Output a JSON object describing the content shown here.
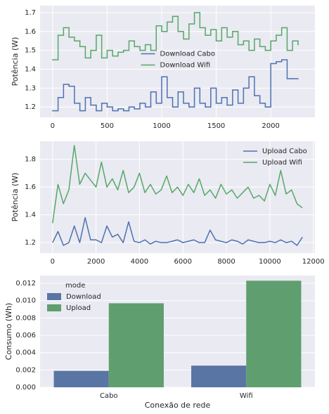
{
  "chart_data": [
    {
      "type": "line",
      "step": "post",
      "ylabel": "Potência (W)",
      "legend": "center",
      "xlim": [
        -115,
        2405
      ],
      "xticks": [
        0,
        500,
        1000,
        1500,
        2000
      ],
      "ylim": [
        1.145,
        1.737
      ],
      "yticks": [
        1.2,
        1.3,
        1.4,
        1.5,
        1.6,
        1.7
      ],
      "grid": true,
      "x": [
        0,
        50,
        100,
        150,
        200,
        250,
        300,
        350,
        400,
        450,
        500,
        550,
        600,
        650,
        700,
        750,
        800,
        850,
        900,
        950,
        1000,
        1050,
        1100,
        1150,
        1200,
        1250,
        1300,
        1350,
        1400,
        1450,
        1500,
        1550,
        1600,
        1650,
        1700,
        1750,
        1800,
        1850,
        1900,
        1950,
        2000,
        2050,
        2100,
        2150,
        2200,
        2250
      ],
      "series": [
        {
          "name": "Download Cabo",
          "color": "#4c72b0",
          "values": [
            1.18,
            1.25,
            1.32,
            1.31,
            1.22,
            1.18,
            1.25,
            1.21,
            1.18,
            1.22,
            1.2,
            1.18,
            1.19,
            1.18,
            1.2,
            1.19,
            1.22,
            1.2,
            1.28,
            1.22,
            1.36,
            1.25,
            1.2,
            1.28,
            1.22,
            1.2,
            1.3,
            1.22,
            1.2,
            1.3,
            1.22,
            1.25,
            1.21,
            1.29,
            1.22,
            1.3,
            1.36,
            1.26,
            1.22,
            1.2,
            1.43,
            1.44,
            1.45,
            1.35,
            1.35,
            null
          ]
        },
        {
          "name": "Download Wifi",
          "color": "#55a868",
          "values": [
            1.45,
            1.58,
            1.62,
            1.57,
            1.55,
            1.52,
            1.46,
            1.5,
            1.58,
            1.46,
            1.5,
            1.47,
            1.49,
            1.5,
            1.55,
            1.52,
            1.5,
            1.53,
            1.5,
            1.63,
            1.6,
            1.65,
            1.68,
            1.6,
            1.56,
            1.64,
            1.7,
            1.62,
            1.58,
            1.61,
            1.55,
            1.62,
            1.57,
            1.6,
            1.53,
            1.55,
            1.5,
            1.56,
            1.52,
            1.5,
            1.55,
            1.58,
            1.62,
            1.5,
            1.55,
            1.53
          ]
        }
      ]
    },
    {
      "type": "line",
      "ylabel": "Potência (W)",
      "legend": "upper right",
      "xlim": [
        -575,
        12075
      ],
      "xticks": [
        0,
        2000,
        4000,
        6000,
        8000,
        10000,
        12000
      ],
      "ylim": [
        1.125,
        1.93
      ],
      "yticks": [
        1.2,
        1.4,
        1.6,
        1.8
      ],
      "grid": true,
      "x": [
        0,
        250,
        500,
        750,
        1000,
        1250,
        1500,
        1750,
        2000,
        2250,
        2500,
        2750,
        3000,
        3250,
        3500,
        3750,
        4000,
        4250,
        4500,
        4750,
        5000,
        5250,
        5500,
        5750,
        6000,
        6250,
        6500,
        6750,
        7000,
        7250,
        7500,
        7750,
        8000,
        8250,
        8500,
        8750,
        9000,
        9250,
        9500,
        9750,
        10000,
        10250,
        10500,
        10750,
        11000,
        11250,
        11500
      ],
      "series": [
        {
          "name": "Upload Cabo",
          "color": "#4c72b0",
          "values": [
            1.2,
            1.28,
            1.18,
            1.2,
            1.32,
            1.2,
            1.38,
            1.22,
            1.22,
            1.2,
            1.32,
            1.24,
            1.26,
            1.2,
            1.35,
            1.21,
            1.2,
            1.22,
            1.19,
            1.21,
            1.2,
            1.2,
            1.21,
            1.22,
            1.2,
            1.21,
            1.22,
            1.2,
            1.2,
            1.29,
            1.22,
            1.21,
            1.2,
            1.22,
            1.21,
            1.19,
            1.22,
            1.21,
            1.2,
            1.2,
            1.21,
            1.2,
            1.22,
            1.2,
            1.21,
            1.18,
            1.24
          ]
        },
        {
          "name": "Upload Wifi",
          "color": "#55a868",
          "values": [
            1.34,
            1.62,
            1.48,
            1.58,
            1.9,
            1.62,
            1.7,
            1.65,
            1.6,
            1.78,
            1.6,
            1.66,
            1.58,
            1.72,
            1.56,
            1.6,
            1.7,
            1.56,
            1.62,
            1.55,
            1.58,
            1.68,
            1.56,
            1.6,
            1.54,
            1.62,
            1.56,
            1.66,
            1.54,
            1.58,
            1.52,
            1.62,
            1.55,
            1.58,
            1.52,
            1.56,
            1.6,
            1.52,
            1.54,
            1.5,
            1.62,
            1.54,
            1.72,
            1.55,
            1.58,
            1.48,
            1.45
          ]
        }
      ]
    },
    {
      "type": "bar",
      "xlabel": "Conexão de rede",
      "ylabel": "Consumo (Wh)",
      "legend": "upper left",
      "legend_title": "mode",
      "categories": [
        "Cabo",
        "Wifi"
      ],
      "ylim": [
        0,
        0.0129
      ],
      "grid": true,
      "yticks": [
        {
          "value": 0,
          "label": "0.000"
        },
        {
          "value": 0.002,
          "label": "0.002"
        },
        {
          "value": 0.004,
          "label": "0.004"
        },
        {
          "value": 0.006,
          "label": "0.006"
        },
        {
          "value": 0.008,
          "label": "0.008"
        },
        {
          "value": 0.01,
          "label": "0.010"
        },
        {
          "value": 0.012,
          "label": "0.012"
        }
      ],
      "series": [
        {
          "name": "Download",
          "color": "#5975a4",
          "values": [
            0.0019,
            0.0025
          ]
        },
        {
          "name": "Upload",
          "color": "#5f9e6e",
          "values": [
            0.0097,
            0.0123
          ]
        }
      ]
    }
  ]
}
